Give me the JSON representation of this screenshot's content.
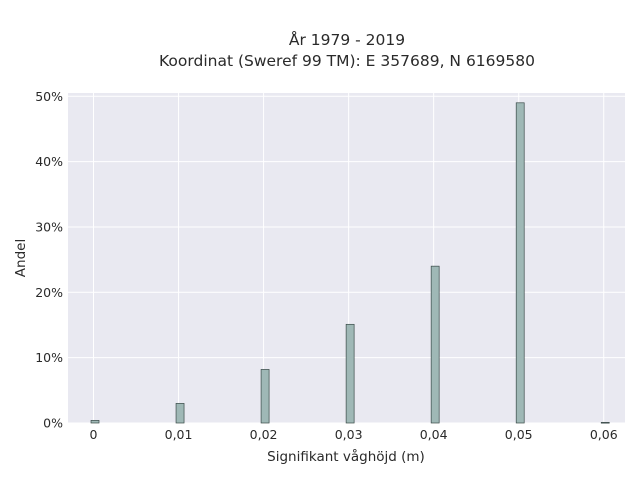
{
  "chart_data": {
    "type": "bar",
    "title_line1": "År 1979 - 2019",
    "title_line2": "Koordinat (Sweref 99 TM): E 357689, N 6169580",
    "xlabel": "Signifikant våghöjd (m)",
    "ylabel": "Andel",
    "x": [
      0.0,
      0.01,
      0.02,
      0.03,
      0.04,
      0.05,
      0.06
    ],
    "values": [
      0.4,
      3.0,
      8.2,
      15.1,
      24.0,
      49.0,
      0.1
    ],
    "xlim": [
      -0.003,
      0.0625
    ],
    "ylim": [
      0,
      50.5
    ],
    "x_ticks": [
      0,
      0.01,
      0.02,
      0.03,
      0.04,
      0.05,
      0.06
    ],
    "x_tick_labels": [
      "0",
      "0,01",
      "0,02",
      "0,03",
      "0,04",
      "0,05",
      "0,06"
    ],
    "y_ticks": [
      0,
      10,
      20,
      30,
      40,
      50
    ],
    "y_tick_labels": [
      "0%",
      "10%",
      "20%",
      "30%",
      "40%",
      "50%"
    ],
    "bar_color": "#9fb8b6",
    "bar_edge_color": "#3a4a48",
    "plot_background": "#e9e9f1",
    "grid": true,
    "legend": "none"
  }
}
